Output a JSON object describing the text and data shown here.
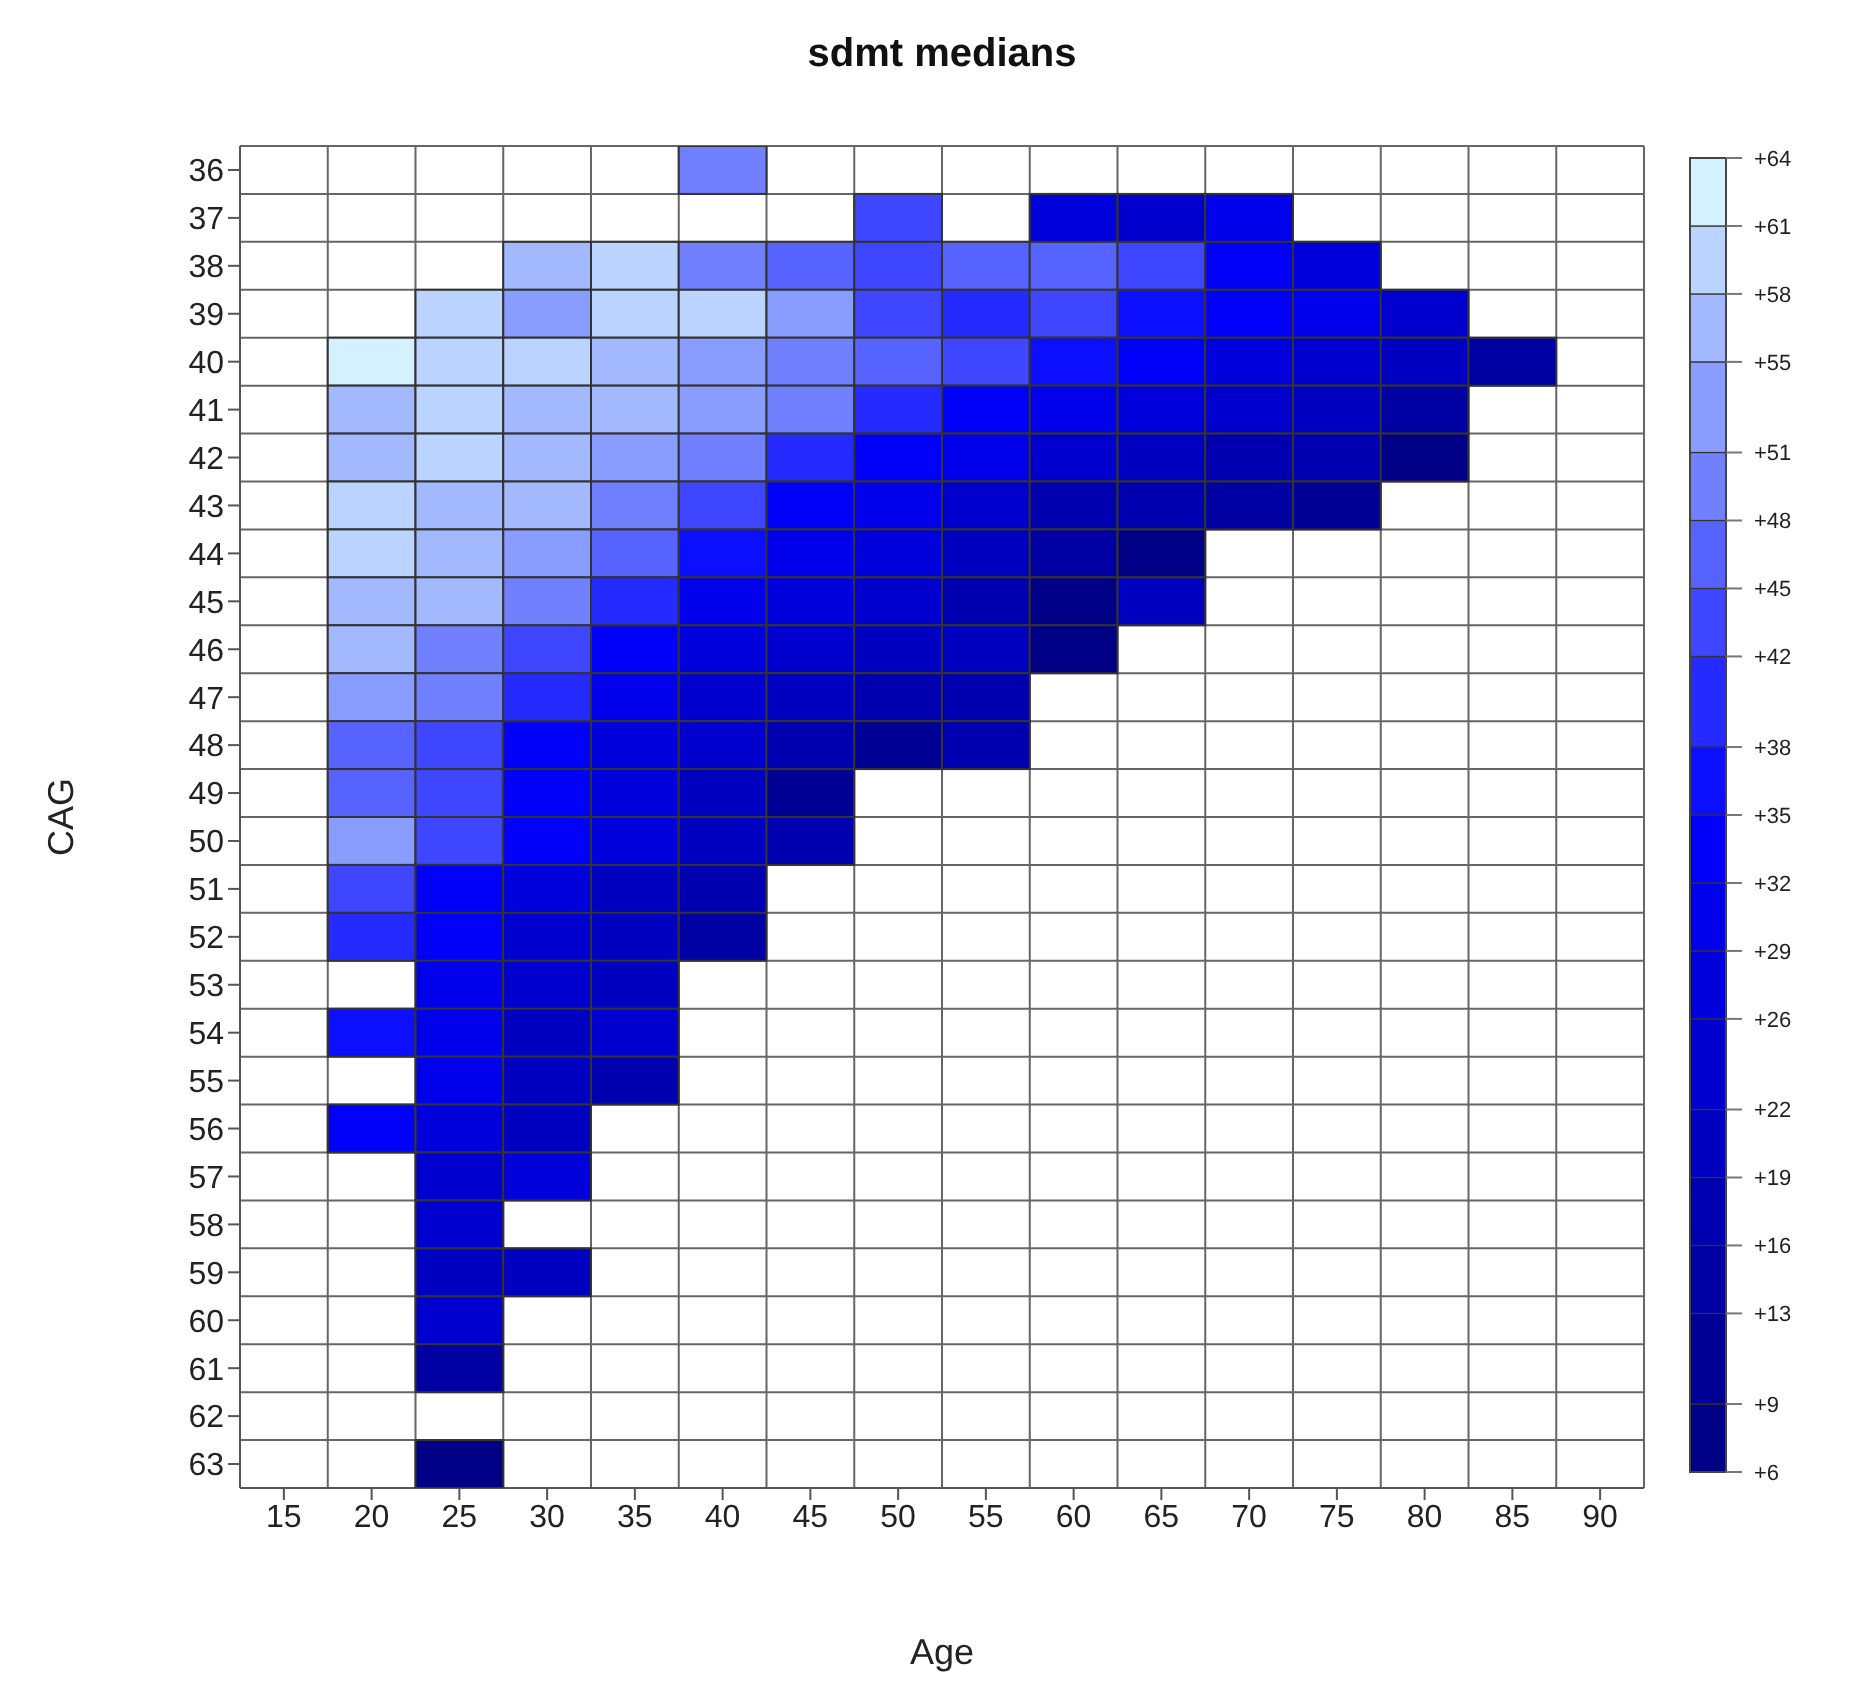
{
  "chart_data": {
    "type": "heatmap",
    "title": "sdmt medians",
    "xlabel": "Age",
    "ylabel": "CAG",
    "categories": [
      "15",
      "20",
      "25",
      "30",
      "35",
      "40",
      "45",
      "50",
      "55",
      "60",
      "65",
      "70",
      "75",
      "80",
      "85",
      "90"
    ],
    "y_categories": [
      "36",
      "37",
      "38",
      "39",
      "40",
      "41",
      "42",
      "43",
      "44",
      "45",
      "46",
      "47",
      "48",
      "49",
      "50",
      "51",
      "52",
      "53",
      "54",
      "55",
      "56",
      "57",
      "58",
      "59",
      "60",
      "61",
      "62",
      "63"
    ],
    "cells": [
      [
        null,
        null,
        null,
        null,
        null,
        50,
        null,
        null,
        null,
        null,
        null,
        null,
        null,
        null,
        null,
        null
      ],
      [
        null,
        null,
        null,
        null,
        null,
        null,
        null,
        44,
        null,
        28,
        24,
        31,
        null,
        null,
        null,
        null
      ],
      [
        null,
        null,
        null,
        57,
        60,
        50,
        47,
        44,
        47,
        47,
        44,
        34,
        28,
        null,
        null,
        null
      ],
      [
        null,
        null,
        60,
        53,
        60,
        60,
        53,
        44,
        40,
        44,
        37,
        34,
        31,
        24,
        null,
        null
      ],
      [
        null,
        63,
        60,
        60,
        57,
        53,
        50,
        47,
        44,
        37,
        34,
        28,
        24,
        21,
        15,
        null
      ],
      [
        null,
        57,
        60,
        57,
        57,
        53,
        50,
        40,
        34,
        31,
        28,
        24,
        21,
        15,
        null,
        null
      ],
      [
        null,
        57,
        60,
        57,
        53,
        50,
        40,
        34,
        31,
        24,
        21,
        18,
        18,
        8,
        null,
        null
      ],
      [
        null,
        60,
        57,
        57,
        50,
        44,
        34,
        31,
        24,
        18,
        18,
        15,
        11,
        null,
        null,
        null
      ],
      [
        null,
        60,
        57,
        53,
        47,
        37,
        31,
        28,
        21,
        15,
        8,
        null,
        null,
        null,
        null,
        null
      ],
      [
        null,
        57,
        57,
        50,
        40,
        31,
        28,
        24,
        18,
        8,
        21,
        null,
        null,
        null,
        null,
        null
      ],
      [
        null,
        57,
        50,
        44,
        34,
        28,
        24,
        21,
        21,
        8,
        null,
        null,
        null,
        null,
        null,
        null
      ],
      [
        null,
        53,
        50,
        40,
        31,
        24,
        21,
        18,
        18,
        null,
        null,
        null,
        null,
        null,
        null,
        null
      ],
      [
        null,
        47,
        44,
        34,
        28,
        24,
        18,
        11,
        18,
        null,
        null,
        null,
        null,
        null,
        null,
        null
      ],
      [
        null,
        47,
        44,
        34,
        28,
        21,
        11,
        null,
        null,
        null,
        null,
        null,
        null,
        null,
        null,
        null
      ],
      [
        null,
        53,
        44,
        34,
        28,
        21,
        18,
        null,
        null,
        null,
        null,
        null,
        null,
        null,
        null,
        null
      ],
      [
        null,
        44,
        34,
        28,
        21,
        18,
        null,
        null,
        null,
        null,
        null,
        null,
        null,
        null,
        null,
        null
      ],
      [
        null,
        40,
        34,
        24,
        21,
        15,
        null,
        null,
        null,
        null,
        null,
        null,
        null,
        null,
        null,
        null
      ],
      [
        null,
        null,
        31,
        24,
        21,
        null,
        null,
        null,
        null,
        null,
        null,
        null,
        null,
        null,
        null,
        null
      ],
      [
        null,
        37,
        31,
        21,
        24,
        null,
        null,
        null,
        null,
        null,
        null,
        null,
        null,
        null,
        null,
        null
      ],
      [
        null,
        null,
        31,
        21,
        18,
        null,
        null,
        null,
        null,
        null,
        null,
        null,
        null,
        null,
        null,
        null
      ],
      [
        null,
        34,
        28,
        21,
        null,
        null,
        null,
        null,
        null,
        null,
        null,
        null,
        null,
        null,
        null,
        null
      ],
      [
        null,
        null,
        24,
        28,
        null,
        null,
        null,
        null,
        null,
        null,
        null,
        null,
        null,
        null,
        null,
        null
      ],
      [
        null,
        null,
        24,
        null,
        null,
        null,
        null,
        null,
        null,
        null,
        null,
        null,
        null,
        null,
        null,
        null
      ],
      [
        null,
        null,
        21,
        21,
        null,
        null,
        null,
        null,
        null,
        null,
        null,
        null,
        null,
        null,
        null,
        null
      ],
      [
        null,
        null,
        24,
        null,
        null,
        null,
        null,
        null,
        null,
        null,
        null,
        null,
        null,
        null,
        null,
        null
      ],
      [
        null,
        null,
        15,
        null,
        null,
        null,
        null,
        null,
        null,
        null,
        null,
        null,
        null,
        null,
        null,
        null
      ],
      [
        null,
        null,
        null,
        null,
        null,
        null,
        null,
        null,
        null,
        null,
        null,
        null,
        null,
        null,
        null,
        null
      ],
      [
        null,
        null,
        8,
        null,
        null,
        null,
        null,
        null,
        null,
        null,
        null,
        null,
        null,
        null,
        null,
        null
      ]
    ],
    "clim": [
      6,
      64
    ],
    "cticks": [
      {
        "value": 6,
        "label": "+6"
      },
      {
        "value": 9,
        "label": "+9"
      },
      {
        "value": 13,
        "label": "+13"
      },
      {
        "value": 16,
        "label": "+16"
      },
      {
        "value": 19,
        "label": "+19"
      },
      {
        "value": 22,
        "label": "+22"
      },
      {
        "value": 26,
        "label": "+26"
      },
      {
        "value": 29,
        "label": "+29"
      },
      {
        "value": 32,
        "label": "+32"
      },
      {
        "value": 35,
        "label": "+35"
      },
      {
        "value": 38,
        "label": "+38"
      },
      {
        "value": 42,
        "label": "+42"
      },
      {
        "value": 45,
        "label": "+45"
      },
      {
        "value": 48,
        "label": "+48"
      },
      {
        "value": 51,
        "label": "+51"
      },
      {
        "value": 55,
        "label": "+55"
      },
      {
        "value": 58,
        "label": "+58"
      },
      {
        "value": 61,
        "label": "+61"
      },
      {
        "value": 64,
        "label": "+64"
      }
    ],
    "grid": true
  }
}
